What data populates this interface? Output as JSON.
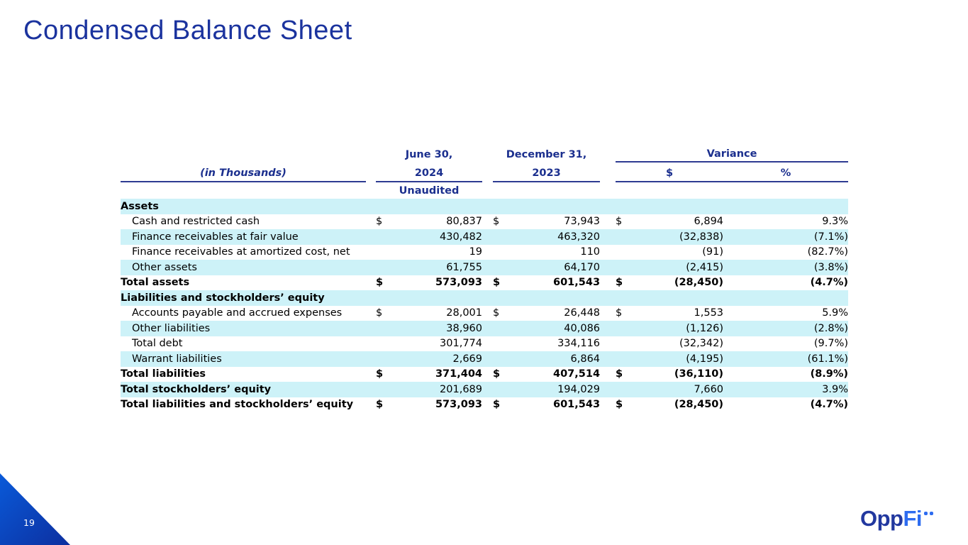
{
  "slide": {
    "title": "Condensed Balance Sheet",
    "page_number": "19",
    "logo": {
      "part1": "Opp",
      "part2": "Fi"
    }
  },
  "colors": {
    "title_navy": "#1b339e",
    "header_navy": "#1b2f8e",
    "rule_navy": "#2e3b92",
    "stripe_cyan": "#cdf2f8",
    "triangle_gradient_start": "#0a5ad9",
    "triangle_gradient_end": "#0c2f9f",
    "logo_dark_blue": "#22389f",
    "logo_bright_blue": "#2d6cf0"
  },
  "table": {
    "header": {
      "row_label_header": "(in Thousands)",
      "period_1_line_1": "June 30,",
      "period_1_line_2": "2024",
      "period_1_note": "Unaudited",
      "period_2_line_1": "December 31,",
      "period_2_line_2": "2023",
      "variance_label": "Variance",
      "variance_dollar_header": "$",
      "variance_percent_header": "%"
    },
    "rows": [
      {
        "label": "Assets",
        "type": "section",
        "shade": true,
        "d1": "",
        "v1": "",
        "d2": "",
        "v2": "",
        "d3": "",
        "v3": "",
        "pct": ""
      },
      {
        "label": "Cash and restricted cash",
        "type": "item",
        "shade": false,
        "d1": "$",
        "v1": "80,837",
        "d2": "$",
        "v2": "73,943",
        "d3": "$",
        "v3": "6,894",
        "pct": "9.3%"
      },
      {
        "label": "Finance receivables at fair value",
        "type": "item",
        "shade": true,
        "d1": "",
        "v1": "430,482",
        "d2": "",
        "v2": "463,320",
        "d3": "",
        "v3": "(32,838)",
        "pct": "(7.1%)"
      },
      {
        "label": "Finance receivables at amortized cost, net",
        "type": "item",
        "shade": false,
        "d1": "",
        "v1": "19",
        "d2": "",
        "v2": "110",
        "d3": "",
        "v3": "(91)",
        "pct": "(82.7%)"
      },
      {
        "label": "Other assets",
        "type": "item",
        "shade": true,
        "d1": "",
        "v1": "61,755",
        "d2": "",
        "v2": "64,170",
        "d3": "",
        "v3": "(2,415)",
        "pct": "(3.8%)"
      },
      {
        "label": "Total assets",
        "type": "total",
        "shade": false,
        "d1": "$",
        "v1": "573,093",
        "d2": "$",
        "v2": "601,543",
        "d3": "$",
        "v3": "(28,450)",
        "pct": "(4.7%)"
      },
      {
        "label": "Liabilities and stockholders’ equity",
        "type": "section",
        "shade": true,
        "d1": "",
        "v1": "",
        "d2": "",
        "v2": "",
        "d3": "",
        "v3": "",
        "pct": ""
      },
      {
        "label": "Accounts payable and accrued expenses",
        "type": "item",
        "shade": false,
        "d1": "$",
        "v1": "28,001",
        "d2": "$",
        "v2": "26,448",
        "d3": "$",
        "v3": "1,553",
        "pct": "5.9%"
      },
      {
        "label": "Other liabilities",
        "type": "item",
        "shade": true,
        "d1": "",
        "v1": "38,960",
        "d2": "",
        "v2": "40,086",
        "d3": "",
        "v3": "(1,126)",
        "pct": "(2.8%)"
      },
      {
        "label": "Total debt",
        "type": "item",
        "shade": false,
        "d1": "",
        "v1": "301,774",
        "d2": "",
        "v2": "334,116",
        "d3": "",
        "v3": "(32,342)",
        "pct": "(9.7%)"
      },
      {
        "label": "Warrant liabilities",
        "type": "item",
        "shade": true,
        "d1": "",
        "v1": "2,669",
        "d2": "",
        "v2": "6,864",
        "d3": "",
        "v3": "(4,195)",
        "pct": "(61.1%)"
      },
      {
        "label": "Total liabilities",
        "type": "total",
        "shade": false,
        "d1": "$",
        "v1": "371,404",
        "d2": "$",
        "v2": "407,514",
        "d3": "$",
        "v3": "(36,110)",
        "pct": "(8.9%)"
      },
      {
        "label": "Total stockholders’ equity",
        "type": "total-label-only",
        "shade": true,
        "d1": "",
        "v1": "201,689",
        "d2": "",
        "v2": "194,029",
        "d3": "",
        "v3": "7,660",
        "pct": "3.9%"
      },
      {
        "label": "Total liabilities and stockholders’ equity",
        "type": "total",
        "shade": false,
        "d1": "$",
        "v1": "573,093",
        "d2": "$",
        "v2": "601,543",
        "d3": "$",
        "v3": "(28,450)",
        "pct": "(4.7%)"
      }
    ]
  }
}
